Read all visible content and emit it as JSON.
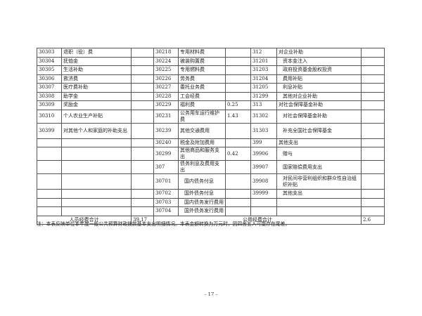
{
  "rows": [
    [
      "30303",
      "退职（役）费",
      "",
      "30218",
      "专用材料费",
      "",
      "312",
      "对企业补助",
      ""
    ],
    [
      "30304",
      "抚恤金",
      "",
      "30224",
      "被装购置费",
      "",
      "31201",
      "资本金注入",
      ""
    ],
    [
      "30305",
      "生活补助",
      "",
      "30225",
      "专用燃料费",
      "",
      "31203",
      "政府投资基金股权投资",
      ""
    ],
    [
      "30306",
      "救济费",
      "",
      "30226",
      "劳务费",
      "",
      "31204",
      "费用补贴",
      ""
    ],
    [
      "30307",
      "医疗费补助",
      "",
      "30227",
      "委托业务费",
      "",
      "31205",
      "利息补贴",
      ""
    ],
    [
      "30308",
      "助学金",
      "",
      "30228",
      "工会经费",
      "",
      "31299",
      "其他对企业补助",
      ""
    ],
    [
      "30309",
      "奖励金",
      "",
      "30229",
      "福利费",
      "0.25",
      "313",
      "对社会保障基金补助",
      ""
    ],
    [
      "30310",
      "个人农业生产补贴",
      "",
      "30231",
      "公务用车运行维护费",
      "1.43",
      "31302",
      "对社会保障基金补助",
      ""
    ],
    [
      "30399",
      "对其他个人和家庭的补助支出",
      "",
      "30239",
      "其他交通费用",
      "",
      "31303",
      "补充全国社会保障基金",
      ""
    ],
    [
      "",
      "",
      "",
      "30240",
      "税金及附加费用",
      "",
      "399",
      "其他支出",
      ""
    ],
    [
      "",
      "",
      "",
      "30299",
      "其他商品和服务支出",
      "0.42",
      "39906",
      "赠与",
      ""
    ],
    [
      "",
      "",
      "",
      "307",
      "债务利息及费用支出",
      "",
      "39907",
      "国家赔偿费用支出",
      ""
    ],
    [
      "",
      "",
      "",
      "30701",
      "国内债务付息",
      "",
      "39908",
      "对民间非营利组织和群众性自治组织补贴",
      ""
    ],
    [
      "",
      "",
      "",
      "30702",
      "国外债务付息",
      "",
      "39999",
      "其他支出",
      ""
    ],
    [
      "",
      "",
      "",
      "30703",
      "国内债务发行费用",
      "",
      "",
      "",
      ""
    ],
    [
      "",
      "",
      "",
      "30704",
      "国外债务发行费用",
      "",
      "",
      "",
      ""
    ]
  ],
  "totals": {
    "personnel_label": "人员经费合计",
    "personnel_value": "39.17",
    "public_label": "公用经费合计",
    "public_value": "2.6"
  },
  "note": "注：本表反映单位本年度一般公共预算财政拨款基本支出明细情况。本表金额转换为万元时，因四舍五入可能存在尾差。",
  "page_number": "- 17 -"
}
